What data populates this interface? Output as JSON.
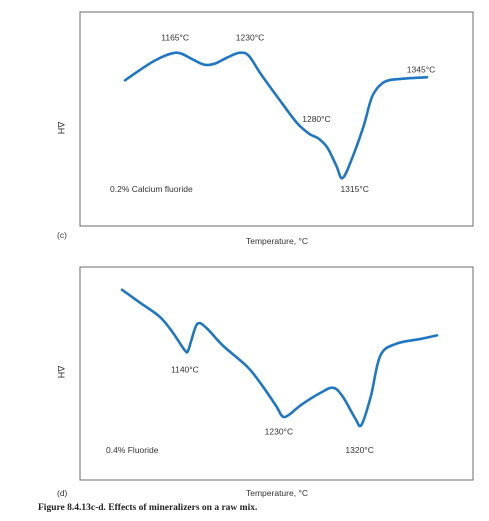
{
  "chart_data": [
    {
      "type": "line",
      "panel_label": "(c)",
      "ylabel": "ΔH",
      "xlabel": "Temperature, °C",
      "legend_text": "0.2% Calcium fluoride",
      "axis_ticks": false,
      "line_color": "#1f77c4",
      "series": [
        {
          "points": [
            [
              0.0,
              0.75
            ],
            [
              0.1,
              0.88
            ],
            [
              0.17,
              0.93
            ],
            [
              0.22,
              0.89
            ],
            [
              0.25,
              0.86
            ],
            [
              0.27,
              0.85
            ],
            [
              0.3,
              0.86
            ],
            [
              0.34,
              0.9
            ],
            [
              0.38,
              0.93
            ],
            [
              0.41,
              0.91
            ],
            [
              0.45,
              0.79
            ],
            [
              0.52,
              0.6
            ],
            [
              0.57,
              0.47
            ],
            [
              0.61,
              0.4
            ],
            [
              0.64,
              0.37
            ],
            [
              0.67,
              0.31
            ],
            [
              0.7,
              0.19
            ],
            [
              0.72,
              0.11
            ],
            [
              0.75,
              0.23
            ],
            [
              0.79,
              0.45
            ],
            [
              0.82,
              0.65
            ],
            [
              0.86,
              0.74
            ],
            [
              0.92,
              0.76
            ],
            [
              1.0,
              0.77
            ]
          ]
        }
      ],
      "annotations": [
        {
          "text": "1165°C",
          "x": 0.13,
          "y": 0.93
        },
        {
          "text": "1230°C",
          "x": 0.4,
          "y": 0.93
        },
        {
          "text": "1280°C",
          "x": 0.62,
          "y": 0.4
        },
        {
          "text": "1315°C",
          "x": 0.72,
          "y": 0.11
        },
        {
          "text": "1345°C",
          "x": 0.9,
          "y": 0.76
        }
      ]
    },
    {
      "type": "line",
      "panel_label": "(d)",
      "ylabel": "ΔH",
      "xlabel": "Temperature, °C",
      "legend_text": "0.4% Fluoride",
      "axis_ticks": false,
      "line_color": "#1f77c4",
      "series": [
        {
          "points": [
            [
              0.0,
              0.96
            ],
            [
              0.06,
              0.88
            ],
            [
              0.12,
              0.8
            ],
            [
              0.16,
              0.71
            ],
            [
              0.2,
              0.6
            ],
            [
              0.21,
              0.6
            ],
            [
              0.22,
              0.66
            ],
            [
              0.24,
              0.76
            ],
            [
              0.27,
              0.73
            ],
            [
              0.32,
              0.63
            ],
            [
              0.4,
              0.5
            ],
            [
              0.45,
              0.38
            ],
            [
              0.49,
              0.27
            ],
            [
              0.51,
              0.21
            ],
            [
              0.53,
              0.22
            ],
            [
              0.57,
              0.28
            ],
            [
              0.63,
              0.35
            ],
            [
              0.67,
              0.38
            ],
            [
              0.7,
              0.33
            ],
            [
              0.74,
              0.2
            ],
            [
              0.76,
              0.16
            ],
            [
              0.79,
              0.33
            ],
            [
              0.82,
              0.57
            ],
            [
              0.87,
              0.64
            ],
            [
              0.95,
              0.67
            ],
            [
              1.0,
              0.69
            ]
          ]
        }
      ],
      "annotations": [
        {
          "text": "1140°C",
          "x": 0.2,
          "y": 0.6
        },
        {
          "text": "1230°C",
          "x": 0.51,
          "y": 0.21
        },
        {
          "text": "1320°C",
          "x": 0.76,
          "y": 0.16
        }
      ]
    }
  ],
  "caption": "Figure 8.4.13c-d. Effects of mineralizers on a raw mix."
}
